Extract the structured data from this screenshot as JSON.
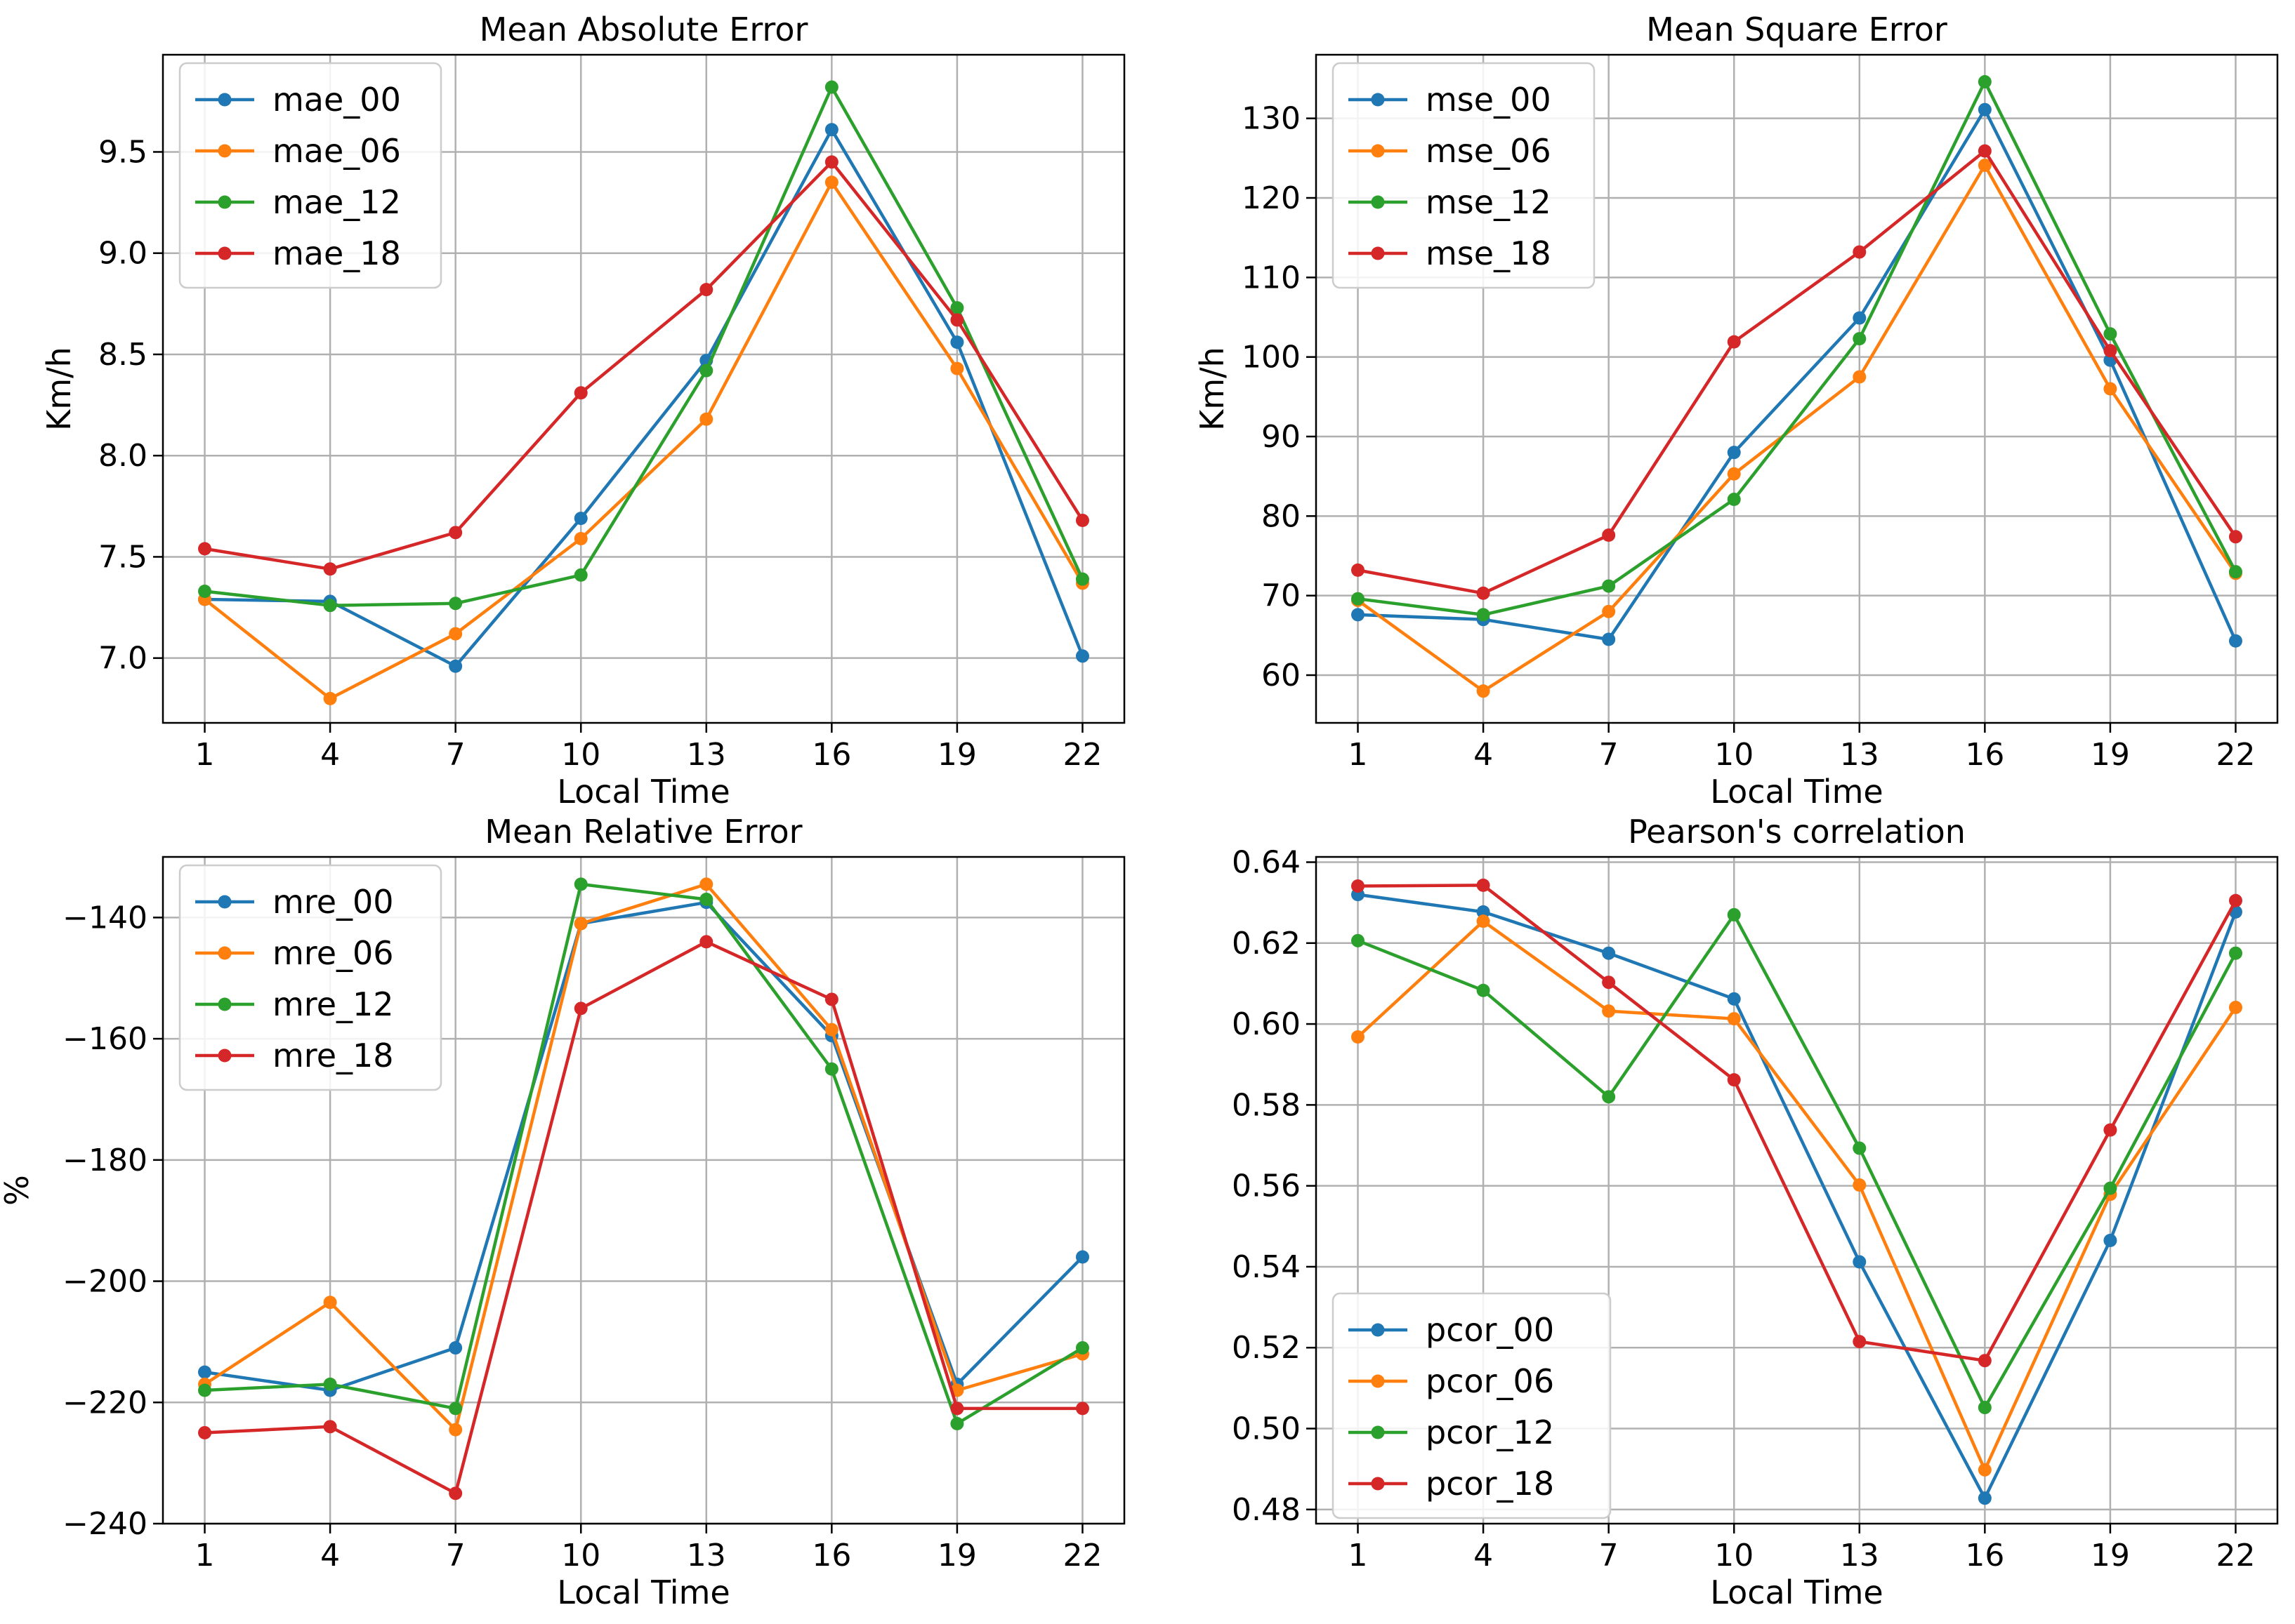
{
  "chart_data": [
    {
      "type": "line",
      "title": "Mean Absolute Error",
      "xlabel": "Local Time",
      "ylabel": "Km/h",
      "x": [
        1,
        4,
        7,
        10,
        13,
        16,
        19,
        22
      ],
      "xlim": [
        0,
        23
      ],
      "ylim": [
        6.68,
        9.98
      ],
      "xticks": [
        1,
        4,
        7,
        10,
        13,
        16,
        19,
        22
      ],
      "yticks": [
        7.0,
        7.5,
        8.0,
        8.5,
        9.0,
        9.5
      ],
      "ytick_labels": [
        "7.0",
        "7.5",
        "8.0",
        "8.5",
        "9.0",
        "9.5"
      ],
      "grid": true,
      "legend_position": "top-left",
      "series": [
        {
          "name": "mae_00",
          "color": "#1f77b4",
          "values": [
            7.29,
            7.28,
            6.96,
            7.69,
            8.47,
            9.61,
            8.56,
            7.01
          ]
        },
        {
          "name": "mae_06",
          "color": "#ff7f0e",
          "values": [
            7.29,
            6.8,
            7.12,
            7.59,
            8.18,
            9.35,
            8.43,
            7.37
          ]
        },
        {
          "name": "mae_12",
          "color": "#2ca02c",
          "values": [
            7.33,
            7.26,
            7.27,
            7.41,
            8.42,
            9.82,
            8.73,
            7.39
          ]
        },
        {
          "name": "mae_18",
          "color": "#d62728",
          "values": [
            7.54,
            7.44,
            7.62,
            8.31,
            8.82,
            9.45,
            8.67,
            7.68
          ]
        }
      ]
    },
    {
      "type": "line",
      "title": "Mean Square Error",
      "xlabel": "Local Time",
      "ylabel": "Km/h",
      "x": [
        1,
        4,
        7,
        10,
        13,
        16,
        19,
        22
      ],
      "xlim": [
        0,
        23
      ],
      "ylim": [
        54,
        138
      ],
      "xticks": [
        1,
        4,
        7,
        10,
        13,
        16,
        19,
        22
      ],
      "yticks": [
        60,
        70,
        80,
        90,
        100,
        110,
        120,
        130
      ],
      "ytick_labels": [
        "60",
        "70",
        "80",
        "90",
        "100",
        "110",
        "120",
        "130"
      ],
      "grid": true,
      "legend_position": "top-left",
      "series": [
        {
          "name": "mse_00",
          "color": "#1f77b4",
          "values": [
            67.6,
            67.0,
            64.5,
            88.0,
            104.9,
            131.1,
            99.6,
            64.3
          ]
        },
        {
          "name": "mse_06",
          "color": "#ff7f0e",
          "values": [
            69.4,
            58.0,
            68.0,
            85.3,
            97.5,
            124.1,
            96.0,
            72.8
          ]
        },
        {
          "name": "mse_12",
          "color": "#2ca02c",
          "values": [
            69.6,
            67.6,
            71.2,
            82.1,
            102.3,
            134.6,
            102.9,
            73.0
          ]
        },
        {
          "name": "mse_18",
          "color": "#d62728",
          "values": [
            73.2,
            70.3,
            77.6,
            101.9,
            113.2,
            125.9,
            100.8,
            77.4
          ]
        }
      ]
    },
    {
      "type": "line",
      "title": "Mean Relative Error",
      "xlabel": "Local Time",
      "ylabel": "%",
      "x": [
        1,
        4,
        7,
        10,
        13,
        16,
        19,
        22
      ],
      "xlim": [
        0,
        23
      ],
      "ylim": [
        -240,
        -130
      ],
      "xticks": [
        1,
        4,
        7,
        10,
        13,
        16,
        19,
        22
      ],
      "yticks": [
        -240,
        -220,
        -200,
        -180,
        -160,
        -140
      ],
      "ytick_labels": [
        "−240",
        "−220",
        "−200",
        "−180",
        "−160",
        "−140"
      ],
      "grid": true,
      "legend_position": "top-left",
      "series": [
        {
          "name": "mre_00",
          "color": "#1f77b4",
          "values": [
            -215.0,
            -218.0,
            -211.0,
            -141.0,
            -137.5,
            -159.5,
            -217.0,
            -196.0
          ]
        },
        {
          "name": "mre_06",
          "color": "#ff7f0e",
          "values": [
            -217.0,
            -203.5,
            -224.5,
            -141.0,
            -134.5,
            -158.5,
            -218.0,
            -212.0
          ]
        },
        {
          "name": "mre_12",
          "color": "#2ca02c",
          "values": [
            -218.0,
            -217.0,
            -221.0,
            -134.5,
            -137.0,
            -165.0,
            -223.5,
            -211.0
          ]
        },
        {
          "name": "mre_18",
          "color": "#d62728",
          "values": [
            -225.0,
            -224.0,
            -235.0,
            -155.0,
            -144.0,
            -153.5,
            -221.0,
            -221.0
          ]
        }
      ]
    },
    {
      "type": "line",
      "title": "Pearson's correlation",
      "xlabel": "Local Time",
      "ylabel": "",
      "x": [
        1,
        4,
        7,
        10,
        13,
        16,
        19,
        22
      ],
      "xlim": [
        0,
        23
      ],
      "ylim": [
        0.4765,
        0.6413
      ],
      "xticks": [
        1,
        4,
        7,
        10,
        13,
        16,
        19,
        22
      ],
      "yticks": [
        0.48,
        0.5,
        0.52,
        0.54,
        0.56,
        0.58,
        0.6,
        0.62,
        0.64
      ],
      "ytick_labels": [
        "0.48",
        "0.50",
        "0.52",
        "0.54",
        "0.56",
        "0.58",
        "0.60",
        "0.62",
        "0.64"
      ],
      "grid": true,
      "legend_position": "bottom-left",
      "series": [
        {
          "name": "pcor_00",
          "color": "#1f77b4",
          "values": [
            0.632,
            0.6277,
            0.6175,
            0.6062,
            0.5412,
            0.4828,
            0.5465,
            0.6277
          ]
        },
        {
          "name": "pcor_06",
          "color": "#ff7f0e",
          "values": [
            0.5968,
            0.6254,
            0.6032,
            0.6013,
            0.5602,
            0.4898,
            0.5579,
            0.6041
          ]
        },
        {
          "name": "pcor_12",
          "color": "#2ca02c",
          "values": [
            0.6206,
            0.6083,
            0.582,
            0.627,
            0.5693,
            0.5052,
            0.5594,
            0.6175
          ]
        },
        {
          "name": "pcor_18",
          "color": "#d62728",
          "values": [
            0.6341,
            0.6343,
            0.6103,
            0.5862,
            0.5215,
            0.5168,
            0.5738,
            0.6305
          ]
        }
      ]
    }
  ]
}
